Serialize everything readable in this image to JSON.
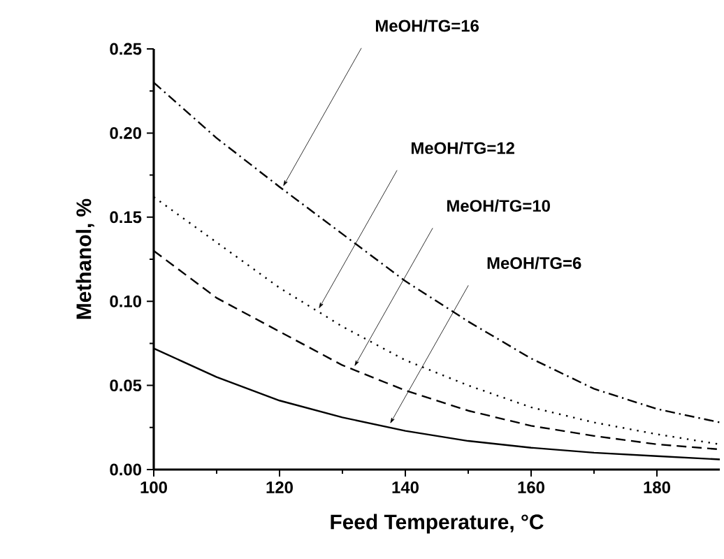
{
  "chart_data": {
    "type": "line",
    "xlabel": "Feed Temperature, °C",
    "ylabel": "Methanol, %",
    "x": [
      100,
      110,
      120,
      130,
      140,
      150,
      160,
      170,
      180,
      190
    ],
    "series": [
      {
        "color": "#000000",
        "line_style": "solid",
        "values": [
          0.072,
          0.055,
          0.041,
          0.031,
          0.023,
          0.017,
          0.013,
          0.01,
          0.008,
          0.006
        ]
      },
      {
        "color": "#000000",
        "line_style": "dashed",
        "values": [
          0.13,
          0.102,
          0.082,
          0.062,
          0.047,
          0.035,
          0.026,
          0.02,
          0.015,
          0.012
        ]
      },
      {
        "color": "#000000",
        "line_style": "dotted",
        "values": [
          0.162,
          0.135,
          0.108,
          0.085,
          0.065,
          0.05,
          0.037,
          0.028,
          0.021,
          0.015
        ]
      },
      {
        "color": "#000000",
        "line_style": "dashdot",
        "values": [
          0.23,
          0.197,
          0.168,
          0.14,
          0.112,
          0.088,
          0.066,
          0.048,
          0.036,
          0.028
        ]
      }
    ],
    "xlim": [
      100,
      190
    ],
    "ylim": [
      0,
      0.25
    ],
    "xticks": [
      100,
      120,
      140,
      160,
      180
    ],
    "yticks": [
      {
        "value": 0,
        "label": "0.00"
      },
      {
        "value": 0.05,
        "label": "0.05"
      },
      {
        "value": 0.1,
        "label": "0.10"
      },
      {
        "value": 0.15,
        "label": "0.15"
      },
      {
        "value": 0.2,
        "label": "0.20"
      },
      {
        "value": 0.25,
        "label": "0.25"
      }
    ],
    "grid": false,
    "marker": "none",
    "annotations": [
      "MeOH/TG=6",
      "MeOH/TG=10",
      "MeOH/TG=12",
      "MeOH/TG=16"
    ]
  }
}
